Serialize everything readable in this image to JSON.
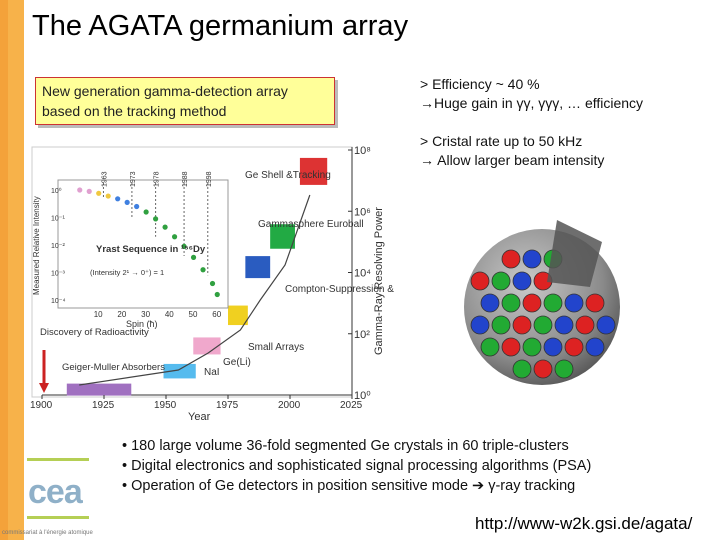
{
  "title": "The AGATA germanium array",
  "box_text": [
    "New generation gamma-detection array",
    "based on the tracking method"
  ],
  "right_text": {
    "line1": "> Efficiency ~ 40 %",
    "line2": "→Huge gain in γγ, γγγ, … efficiency",
    "line3": "> Cristal rate up to 50 kHz",
    "line4": "→ Allow larger beam intensity"
  },
  "bullets": [
    "• 180 large volume 36-fold segmented Ge crystals in 60 triple-clusters",
    "• Digital electronics and sophisticated signal processing algorithms (PSA)",
    "• Operation of Ge detectors in position sensitive mode ➔ γ-ray tracking"
  ],
  "url": "http://www-w2k.gsi.de/agata/",
  "logo": "cea",
  "footer": "commissariat à l'énergie atomique",
  "colors": {
    "sidebar": "#f4a23a",
    "box_bg": "#ffff99",
    "box_border": "#cc3333",
    "logo_line": "#b5cf55"
  },
  "chart_data": {
    "type": "scatter",
    "xlabel": "Year",
    "x_ticks": [
      "1900",
      "1925",
      "1950",
      "1975",
      "2000",
      "2025"
    ],
    "xlim": [
      1900,
      2025
    ],
    "ylabel_right": "Gamma-Ray Resolving Power",
    "y_right_ticks": [
      "10⁰",
      "10²",
      "10⁴",
      "10⁶",
      "10⁸"
    ],
    "log_scale": true,
    "annotations": [
      "Discovery of Radioactivity",
      "Geiger-Muller Absorbers",
      "NaI",
      "Ge(Li)",
      "Small Arrays",
      "Compton-Suppression & HPGe",
      "Gammasphere Euroball",
      "Ge Shell &Tracking"
    ],
    "milestones": [
      {
        "label": "Geiger-Muller Absorbers",
        "year_start": 1910,
        "year_end": 1936,
        "power": 1.5
      },
      {
        "label": "NaI",
        "year_start": 1949,
        "year_end": 1962,
        "power": 6
      },
      {
        "label": "Ge(Li)",
        "year_start": 1961,
        "year_end": 1972,
        "power": 40
      },
      {
        "label": "Small Arrays",
        "year_start": 1975,
        "year_end": 1983,
        "power": 400
      },
      {
        "label": "Compton-Suppression & HPGe",
        "year_start": 1982,
        "year_end": 1992,
        "power": 15000
      },
      {
        "label": "Gammasphere Euroball",
        "year_start": 1992,
        "year_end": 2002,
        "power": 150000
      },
      {
        "label": "Ge Shell &Tracking",
        "year_start": 2004,
        "year_end": 2015,
        "power": 20000000
      }
    ],
    "inset": {
      "ylabel": "Measured Relative Intensity",
      "xlabel": "Spin (ħ)",
      "x_ticks": [
        "10",
        "20",
        "30",
        "40",
        "50",
        "60"
      ],
      "y_ticks": [
        "10⁰",
        "10⁻¹",
        "10⁻²",
        "10⁻³",
        "10⁻⁴"
      ],
      "label": "Yrast Sequence in ¹⁵⁶Dy",
      "sublabel": "(Intensity 2¹ → 0⁺) = 1",
      "year_labels": [
        "1963",
        "1973",
        "1978",
        "1988",
        "1998"
      ],
      "points": [
        {
          "spin": 2,
          "log_intensity": 0.0
        },
        {
          "spin": 6,
          "log_intensity": -0.05
        },
        {
          "spin": 10,
          "log_intensity": -0.12
        },
        {
          "spin": 14,
          "log_intensity": -0.22
        },
        {
          "spin": 18,
          "log_intensity": -0.32
        },
        {
          "spin": 22,
          "log_intensity": -0.45
        },
        {
          "spin": 26,
          "log_intensity": -0.6
        },
        {
          "spin": 30,
          "log_intensity": -0.8
        },
        {
          "spin": 34,
          "log_intensity": -1.05
        },
        {
          "spin": 38,
          "log_intensity": -1.35
        },
        {
          "spin": 42,
          "log_intensity": -1.7
        },
        {
          "spin": 46,
          "log_intensity": -2.05
        },
        {
          "spin": 50,
          "log_intensity": -2.45
        },
        {
          "spin": 54,
          "log_intensity": -2.9
        },
        {
          "spin": 58,
          "log_intensity": -3.4
        },
        {
          "spin": 60,
          "log_intensity": -3.8
        }
      ]
    }
  }
}
